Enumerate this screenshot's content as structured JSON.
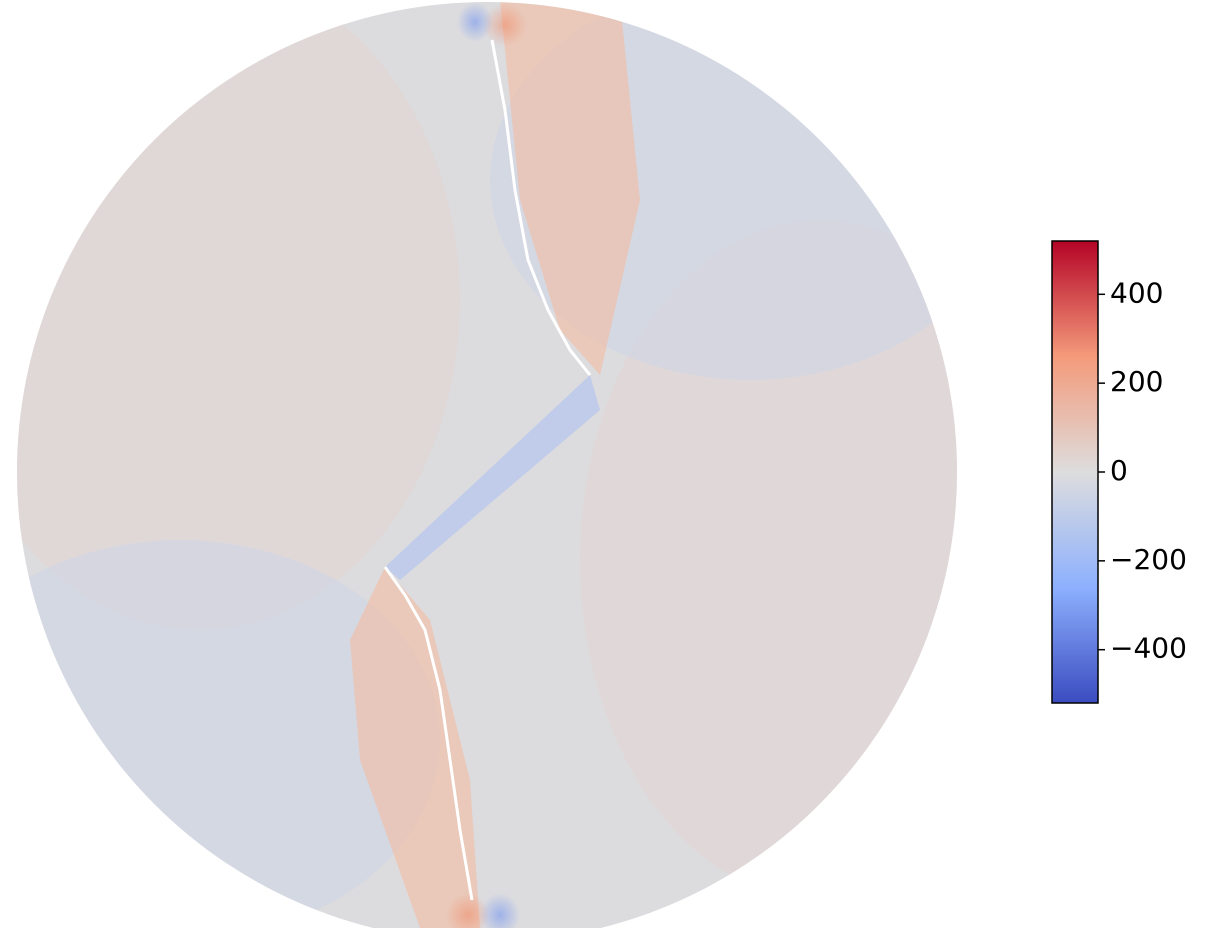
{
  "chart_data": {
    "type": "field",
    "colorbar": {
      "lim": [
        -520,
        520
      ],
      "ticks": [
        {
          "value": -400,
          "label": "−400"
        },
        {
          "value": -200,
          "label": "−200"
        },
        0,
        200,
        400
      ],
      "colormap": [
        "#3b4cc0",
        "#8db0fe",
        "#dddddd",
        "#f49a7b",
        "#b40426"
      ]
    }
  }
}
